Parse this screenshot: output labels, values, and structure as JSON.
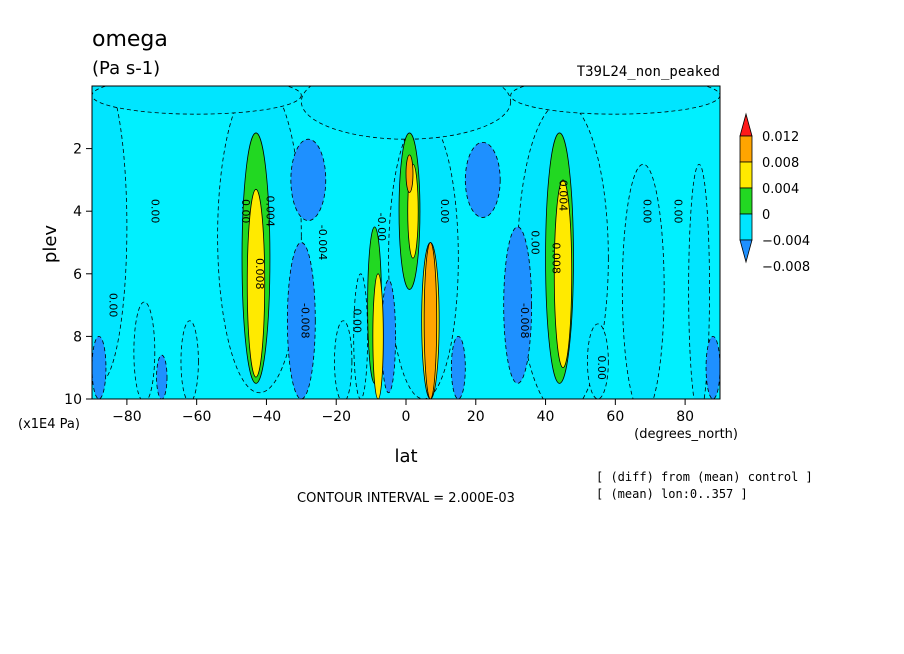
{
  "chart_data": {
    "type": "heatmap",
    "variable": "omega",
    "units": "(Pa s-1)",
    "experiment": "T39L24_non_peaked",
    "xlabel": "lat",
    "xunits": "(degrees_north)",
    "ylabel": "plev",
    "yunits": "(x1E4 Pa)",
    "xlim": [
      -90,
      90
    ],
    "ylim": [
      10,
      0
    ],
    "x_ticks": [
      -80,
      -60,
      -40,
      -20,
      0,
      20,
      40,
      60,
      80
    ],
    "y_ticks": [
      2,
      4,
      6,
      8,
      10
    ],
    "contour_interval_text": "CONTOUR INTERVAL = 2.000E-03",
    "notes": [
      "[ (diff) from (mean) control ]",
      "[ (mean) lon:0..357 ]"
    ],
    "colorbar": {
      "levels": [
        -0.008,
        -0.004,
        0,
        0.004,
        0.008,
        0.012
      ],
      "labels": [
        "−0.008",
        "−0.004",
        "0",
        "0.004",
        "0.008",
        "0.012"
      ],
      "colors": [
        "#1e90ff",
        "#00e5ff",
        "#22d822",
        "#ffea00",
        "#ffa500",
        "#ff1a1a"
      ],
      "extend": "both"
    },
    "background_color": "#00f0ff",
    "regions": [
      {
        "kind": "ellipse",
        "level": 1,
        "lat": -88,
        "p": 4.5,
        "rlat": 8,
        "rp": 5.0
      },
      {
        "kind": "ellipse",
        "level": 1,
        "lat": -42,
        "p": 4.8,
        "rlat": 12,
        "rp": 5.0
      },
      {
        "kind": "ellipse",
        "level": 1,
        "lat": -75,
        "p": 8.5,
        "rlat": 3,
        "rp": 1.6
      },
      {
        "kind": "ellipse",
        "level": 1,
        "lat": -62,
        "p": 8.8,
        "rlat": 2.5,
        "rp": 1.3
      },
      {
        "kind": "ellipse",
        "level": 1,
        "lat": -18,
        "p": 8.8,
        "rlat": 2.5,
        "rp": 1.3
      },
      {
        "kind": "ellipse",
        "level": 1,
        "lat": -13,
        "p": 8.0,
        "rlat": 2,
        "rp": 2.0
      },
      {
        "kind": "ellipse",
        "level": 1,
        "lat": 5,
        "p": 5.5,
        "rlat": 10,
        "rp": 4.5
      },
      {
        "kind": "ellipse",
        "level": 1,
        "lat": 45,
        "p": 5.5,
        "rlat": 13,
        "rp": 5.0
      },
      {
        "kind": "ellipse",
        "level": 1,
        "lat": 68,
        "p": 6.5,
        "rlat": 6,
        "rp": 4.0
      },
      {
        "kind": "ellipse",
        "level": 1,
        "lat": 84,
        "p": 6.5,
        "rlat": 3,
        "rp": 4.0
      },
      {
        "kind": "ellipse",
        "level": 1,
        "lat": 55,
        "p": 8.8,
        "rlat": 3,
        "rp": 1.2
      },
      {
        "kind": "ellipse",
        "level": 1,
        "lat": 0,
        "p": 0.5,
        "rlat": 30,
        "rp": 1.2
      },
      {
        "kind": "ellipse",
        "level": 1,
        "lat": -60,
        "p": 0.3,
        "rlat": 30,
        "rp": 0.6
      },
      {
        "kind": "ellipse",
        "level": 1,
        "lat": 60,
        "p": 0.3,
        "rlat": 30,
        "rp": 0.6
      },
      {
        "kind": "ellipse",
        "level": 0,
        "lat": -28,
        "p": 3.0,
        "rlat": 5,
        "rp": 1.3
      },
      {
        "kind": "ellipse",
        "level": 0,
        "lat": 22,
        "p": 3.0,
        "rlat": 5,
        "rp": 1.2
      },
      {
        "kind": "ellipse",
        "level": 0,
        "lat": -30,
        "p": 7.5,
        "rlat": 4,
        "rp": 2.5
      },
      {
        "kind": "ellipse",
        "level": 0,
        "lat": 32,
        "p": 7.0,
        "rlat": 4,
        "rp": 2.5
      },
      {
        "kind": "ellipse",
        "level": 0,
        "lat": -88,
        "p": 9.0,
        "rlat": 2,
        "rp": 1.0
      },
      {
        "kind": "ellipse",
        "level": 0,
        "lat": -70,
        "p": 9.3,
        "rlat": 1.5,
        "rp": 0.7
      },
      {
        "kind": "ellipse",
        "level": 0,
        "lat": -5,
        "p": 8.0,
        "rlat": 2,
        "rp": 1.8
      },
      {
        "kind": "ellipse",
        "level": 0,
        "lat": 15,
        "p": 9.0,
        "rlat": 2,
        "rp": 1.0
      },
      {
        "kind": "ellipse",
        "level": 0,
        "lat": 88,
        "p": 9.0,
        "rlat": 2,
        "rp": 1.0
      },
      {
        "kind": "ellipse",
        "level": 2,
        "lat": -43,
        "p": 5.5,
        "rlat": 4,
        "rp": 4.0
      },
      {
        "kind": "ellipse",
        "level": 2,
        "lat": 44,
        "p": 5.5,
        "rlat": 4,
        "rp": 4.0
      },
      {
        "kind": "ellipse",
        "level": 2,
        "lat": 1,
        "p": 4.0,
        "rlat": 3,
        "rp": 2.5
      },
      {
        "kind": "ellipse",
        "level": 2,
        "lat": -9,
        "p": 7.0,
        "rlat": 2,
        "rp": 2.5
      },
      {
        "kind": "ellipse",
        "level": 3,
        "lat": -43,
        "p": 6.3,
        "rlat": 2.5,
        "rp": 3.0
      },
      {
        "kind": "ellipse",
        "level": 3,
        "lat": 45,
        "p": 6.0,
        "rlat": 2.5,
        "rp": 3.0
      },
      {
        "kind": "ellipse",
        "level": 3,
        "lat": 2,
        "p": 4.0,
        "rlat": 1.5,
        "rp": 1.5
      },
      {
        "kind": "ellipse",
        "level": 3,
        "lat": -8,
        "p": 8.0,
        "rlat": 1.5,
        "rp": 2.0
      },
      {
        "kind": "ellipse",
        "level": 3,
        "lat": 7,
        "p": 7.5,
        "rlat": 2.5,
        "rp": 2.5
      },
      {
        "kind": "ellipse",
        "level": 4,
        "lat": 1,
        "p": 2.8,
        "rlat": 1,
        "rp": 0.6
      },
      {
        "kind": "ellipse",
        "level": 4,
        "lat": 7,
        "p": 7.5,
        "rlat": 1.8,
        "rp": 2.5
      }
    ],
    "contour_labels": [
      {
        "text": "0.00",
        "lat": -85,
        "p": 7.0
      },
      {
        "text": "0.00",
        "lat": -73,
        "p": 4.0
      },
      {
        "text": "0.00",
        "lat": -47,
        "p": 4.0
      },
      {
        "text": "0.004",
        "lat": -40,
        "p": 4.0
      },
      {
        "text": "0.008",
        "lat": -43,
        "p": 6.0
      },
      {
        "text": "-0.008",
        "lat": -30,
        "p": 7.5
      },
      {
        "text": "-0.004",
        "lat": -25,
        "p": 5.0
      },
      {
        "text": "0.00",
        "lat": -15,
        "p": 7.5
      },
      {
        "text": "-0.00",
        "lat": -8,
        "p": 4.5
      },
      {
        "text": "0.00",
        "lat": 10,
        "p": 4.0
      },
      {
        "text": "0.00",
        "lat": 36,
        "p": 5.0
      },
      {
        "text": "-0.008",
        "lat": 33,
        "p": 7.5
      },
      {
        "text": "0.004",
        "lat": 44,
        "p": 3.5
      },
      {
        "text": "0.008",
        "lat": 42,
        "p": 5.5
      },
      {
        "text": "0.00",
        "lat": 55,
        "p": 9.0
      },
      {
        "text": "0.00",
        "lat": 68,
        "p": 4.0
      },
      {
        "text": "0.00",
        "lat": 77,
        "p": 4.0
      }
    ]
  }
}
